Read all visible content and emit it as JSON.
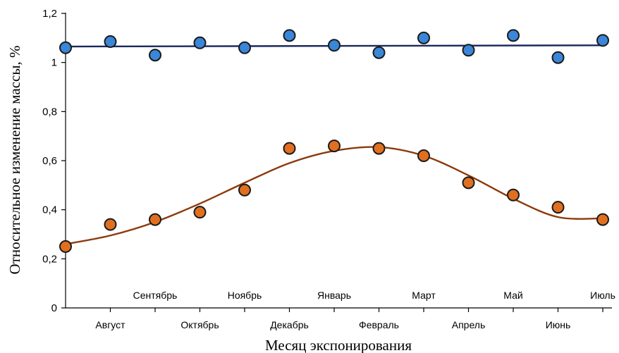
{
  "chart_data": {
    "type": "scatter",
    "title": "",
    "xlabel": "Месяц экспонирования",
    "ylabel": "Относительное изменение массы, %",
    "ylim": [
      0,
      1.2
    ],
    "y_ticks": [
      "0",
      "0,2",
      "0,4",
      "0,6",
      "0,8",
      "1",
      "1,2"
    ],
    "categories": [
      "",
      "Август",
      "Сентябрь",
      "Октябрь",
      "Ноябрь",
      "Декабрь",
      "Январь",
      "Февраль",
      "Март",
      "Апрель",
      "Май",
      "Июнь",
      "Июль"
    ],
    "grid": false,
    "legend": "none",
    "series": [
      {
        "color": "#3a86d8",
        "line_color": "#1a2a5e",
        "values": [
          1.06,
          1.085,
          1.03,
          1.08,
          1.06,
          1.11,
          1.07,
          1.04,
          1.1,
          1.05,
          1.11,
          1.02,
          1.09
        ],
        "trend": [
          1.065,
          1.07
        ]
      },
      {
        "color": "#e07020",
        "line_color": "#8b3a0a",
        "values": [
          0.25,
          0.34,
          0.36,
          0.39,
          0.48,
          0.65,
          0.66,
          0.65,
          0.62,
          0.51,
          0.46,
          0.41,
          0.36
        ],
        "trend_curve": [
          0.26,
          0.295,
          0.35,
          0.425,
          0.51,
          0.59,
          0.64,
          0.655,
          0.62,
          0.54,
          0.445,
          0.37,
          0.365
        ]
      }
    ]
  }
}
